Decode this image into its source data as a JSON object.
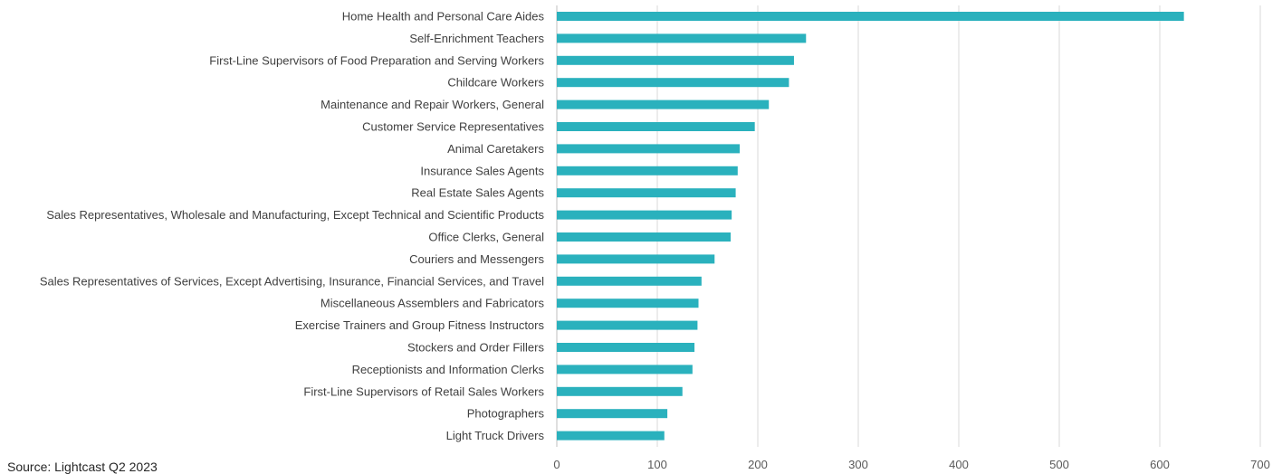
{
  "source_note": "Source: Lightcast Q2 2023",
  "chart_data": {
    "type": "bar",
    "orientation": "horizontal",
    "title": "",
    "xlabel": "",
    "ylabel": "",
    "xlim": [
      0,
      700
    ],
    "xticks": [
      0,
      100,
      200,
      300,
      400,
      500,
      600,
      700
    ],
    "grid": "vertical",
    "bar_color": "#2AB1BD",
    "categories": [
      "Home Health and Personal Care Aides",
      "Self-Enrichment Teachers",
      "First-Line Supervisors of Food Preparation and Serving Workers",
      "Childcare Workers",
      "Maintenance and Repair Workers, General",
      "Customer Service Representatives",
      "Animal Caretakers",
      "Insurance Sales Agents",
      "Real Estate Sales Agents",
      "Sales Representatives, Wholesale and Manufacturing, Except Technical and Scientific Products",
      "Office Clerks, General",
      "Couriers and Messengers",
      "Sales Representatives of Services, Except Advertising, Insurance, Financial Services, and Travel",
      "Miscellaneous Assemblers and Fabricators",
      "Exercise Trainers and Group Fitness Instructors",
      "Stockers and Order Fillers",
      "Receptionists and Information Clerks",
      "First-Line Supervisors of Retail Sales Workers",
      "Photographers",
      "Light Truck Drivers"
    ],
    "values": [
      624,
      248,
      236,
      231,
      211,
      197,
      182,
      180,
      178,
      174,
      173,
      157,
      144,
      141,
      140,
      137,
      135,
      125,
      110,
      107
    ]
  }
}
